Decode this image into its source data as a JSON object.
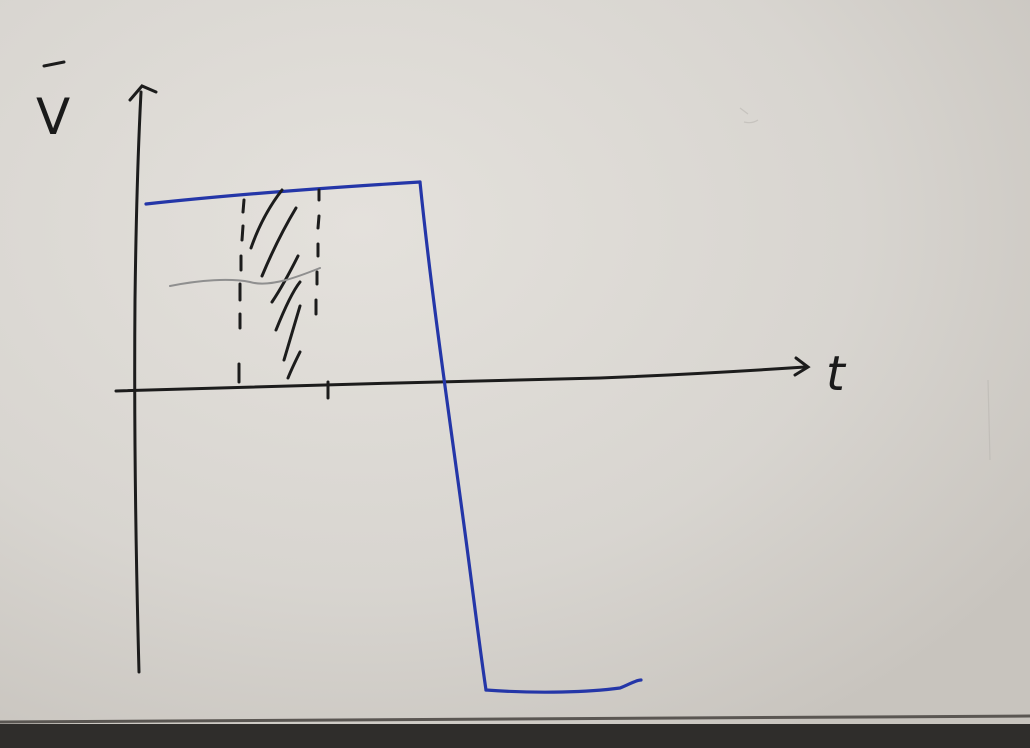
{
  "board": {
    "axis_labels": {
      "y": "V",
      "x": "t"
    },
    "colors": {
      "board": "#dad7d2",
      "board_dark": "#c9c5bf",
      "ink_black": "#1c1c1c",
      "ink_blue": "#2233a8",
      "ink_gray": "#8a8a8a",
      "tray": "#2e2c2a"
    }
  }
}
